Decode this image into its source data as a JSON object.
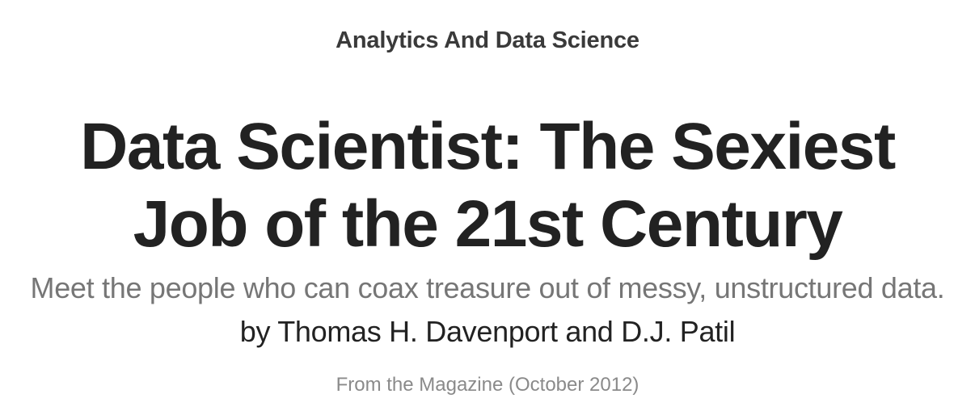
{
  "header": {
    "topic": "Analytics And Data Science",
    "title": "Data Scientist: The Sexiest Job of the 21st Century",
    "dek": "Meet the people who can coax treasure out of messy, unstructured data.",
    "byline_prefix": "by",
    "authors": [
      "Thomas H. Davenport",
      "D.J. Patil"
    ],
    "author_joiner": "and",
    "publication_info": "From the Magazine (October 2012)"
  }
}
